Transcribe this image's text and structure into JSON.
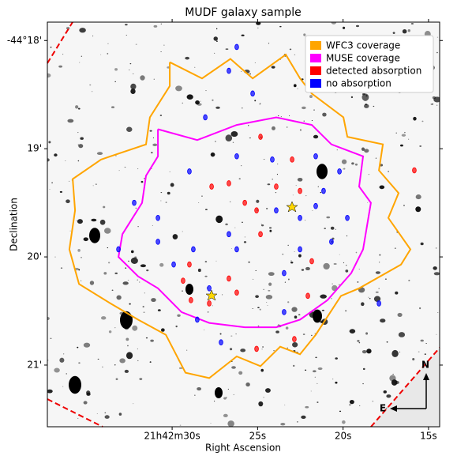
{
  "chart_data": {
    "type": "scatter",
    "title": "MUDF galaxy sample",
    "xlabel": "Right Ascension",
    "ylabel": "Declination",
    "xlim": [
      37.3,
      14.35
    ],
    "ylim": [
      21.57,
      17.83
    ],
    "xticks": [
      {
        "value": 30,
        "label": "21h42m30s"
      },
      {
        "value": 25,
        "label": "25s"
      },
      {
        "value": 20,
        "label": "20s"
      },
      {
        "value": 15,
        "label": "15s"
      }
    ],
    "yticks": [
      {
        "value": 18,
        "label": "-44°18'"
      },
      {
        "value": 19,
        "label": "19'"
      },
      {
        "value": 20,
        "label": "20'"
      },
      {
        "value": 21,
        "label": "21'"
      }
    ],
    "legend": "upper right",
    "compass": {
      "north": "N",
      "east": "E"
    },
    "series": [
      {
        "name": "WFC3 coverage",
        "color": "#ffa500",
        "type": "line",
        "x": [
          30.14,
          28.25,
          26.59,
          25.29,
          23.35,
          22.52,
          21.83,
          19.98,
          19.75,
          17.67,
          17.9,
          16.75,
          17.35,
          16.06,
          16.61,
          19.06,
          20.12,
          21.6,
          22.52,
          23.68,
          24.83,
          26.22,
          27.83,
          29.22,
          30.37,
          31.99,
          33.61,
          35.45,
          36.01,
          35.68,
          35.82,
          34.16,
          33.61,
          31.53,
          31.3,
          30.14,
          30.14
        ],
        "y": [
          18.2,
          18.35,
          18.17,
          18.35,
          18.13,
          18.35,
          18.49,
          18.71,
          18.89,
          18.96,
          19.2,
          19.41,
          19.64,
          19.93,
          20.07,
          20.29,
          20.36,
          20.72,
          20.9,
          20.83,
          21.01,
          20.92,
          21.12,
          21.07,
          20.72,
          20.58,
          20.43,
          20.25,
          19.93,
          19.57,
          19.28,
          19.1,
          19.07,
          18.96,
          18.71,
          18.42,
          18.2
        ]
      },
      {
        "name": "MUSE coverage",
        "color": "#ff00ff",
        "type": "line",
        "x": [
          30.83,
          28.53,
          26.22,
          23.91,
          21.83,
          20.68,
          18.83,
          19.06,
          18.37,
          18.83,
          19.52,
          20.91,
          22.52,
          23.91,
          25.75,
          27.83,
          29.45,
          30.83,
          31.99,
          33.14,
          32.91,
          31.76,
          31.53,
          30.83,
          30.83
        ],
        "y": [
          18.82,
          18.92,
          18.78,
          18.71,
          18.78,
          18.96,
          19.07,
          19.35,
          19.5,
          19.93,
          20.15,
          20.4,
          20.58,
          20.65,
          20.65,
          20.61,
          20.51,
          20.29,
          20.18,
          20.0,
          19.79,
          19.5,
          19.25,
          19.07,
          18.82
        ]
      },
      {
        "name": "detected absorption",
        "color": "#ff0000",
        "type": "scatter",
        "x": [
          24.83,
          22.98,
          27.69,
          26.68,
          23.91,
          22.52,
          25.06,
          28.99,
          29.36,
          26.68,
          28.9,
          27.83,
          26.22,
          25.06,
          22.85,
          22.06,
          24.83,
          25.75,
          15.83,
          21.83
        ],
        "y": [
          18.89,
          19.1,
          19.35,
          19.32,
          19.35,
          19.39,
          19.57,
          20.07,
          20.22,
          20.2,
          20.4,
          20.43,
          20.33,
          20.85,
          20.76,
          20.36,
          19.79,
          19.5,
          19.2,
          20.04
        ]
      },
      {
        "name": "no absorption",
        "color": "#0000ff",
        "type": "scatter",
        "x": [
          26.22,
          26.68,
          25.29,
          28.06,
          21.6,
          28.99,
          23.91,
          22.52,
          21.6,
          26.68,
          28.76,
          29.91,
          23.45,
          26.22,
          28.53,
          27.14,
          20.68,
          19.75,
          30.83,
          32.22,
          24.14,
          27.83,
          23.45,
          21.14,
          17.9,
          26.22,
          20.21,
          33.14,
          30.83,
          22.52
        ],
        "y": [
          18.06,
          18.28,
          18.49,
          18.71,
          19.07,
          19.21,
          19.57,
          19.64,
          19.53,
          19.79,
          19.93,
          20.07,
          20.15,
          19.93,
          20.58,
          20.79,
          19.86,
          19.64,
          19.64,
          19.5,
          19.1,
          20.29,
          20.51,
          19.39,
          20.43,
          19.07,
          19.21,
          19.93,
          19.86,
          19.93
        ]
      }
    ]
  }
}
